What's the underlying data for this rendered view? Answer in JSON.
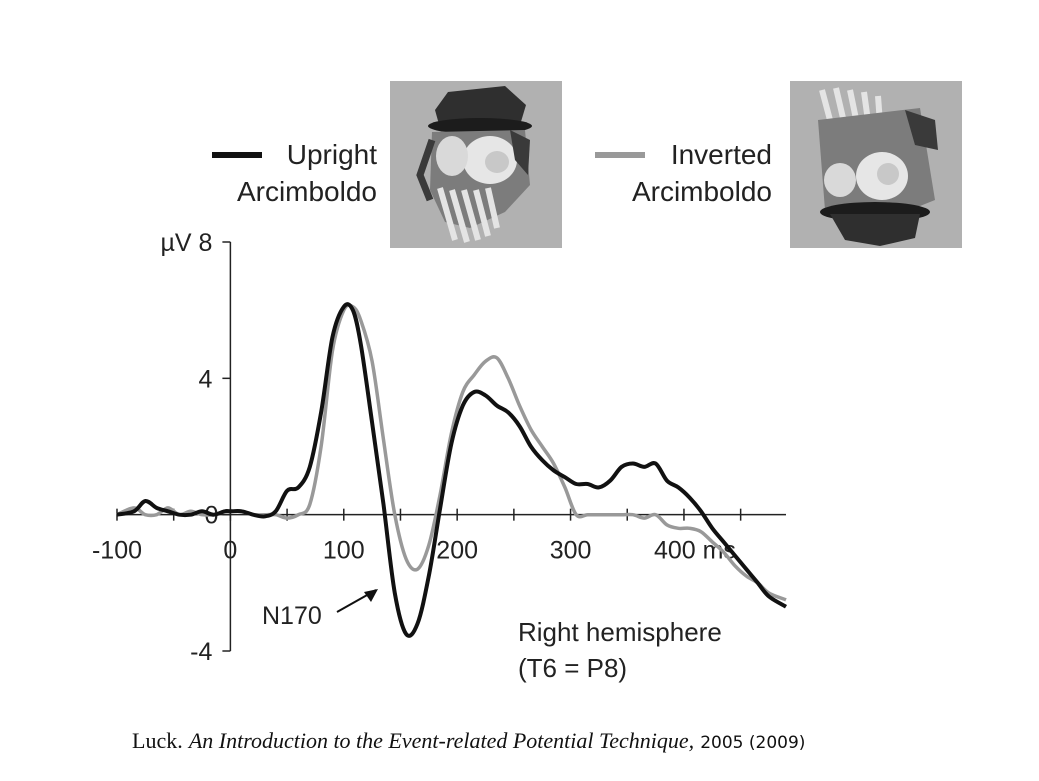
{
  "chart_data": {
    "type": "line",
    "title": "",
    "xlabel": "ms",
    "ylabel": "µV",
    "xlim": [
      -100,
      490
    ],
    "ylim": [
      -4,
      8
    ],
    "x_ticks": [
      -100,
      0,
      100,
      200,
      300,
      400
    ],
    "x_tick_labels": [
      "-100",
      "0",
      "100",
      "200",
      "300",
      "400 ms"
    ],
    "y_ticks": [
      -4,
      0,
      4,
      8
    ],
    "y_tick_labels": [
      "-4",
      "0",
      "4",
      "µV 8"
    ],
    "legend_position": "top",
    "series": [
      {
        "name": "Upright Arcimboldo",
        "color": "#111111",
        "x": [
          -100,
          -85,
          -75,
          -65,
          -55,
          -45,
          -35,
          -25,
          -15,
          -5,
          0,
          10,
          20,
          30,
          40,
          50,
          60,
          70,
          80,
          90,
          100,
          108,
          115,
          125,
          135,
          145,
          155,
          165,
          175,
          185,
          195,
          205,
          215,
          225,
          235,
          245,
          255,
          265,
          275,
          285,
          295,
          305,
          315,
          325,
          335,
          345,
          355,
          365,
          375,
          385,
          395,
          405,
          415,
          425,
          435,
          445,
          455,
          465,
          475,
          490
        ],
        "values": [
          0.0,
          0.1,
          0.4,
          0.2,
          0.1,
          0.0,
          0.0,
          0.1,
          0.0,
          0.1,
          0.1,
          0.1,
          0.0,
          -0.05,
          0.1,
          0.7,
          0.8,
          1.4,
          3.0,
          5.2,
          6.1,
          6.0,
          5.0,
          2.7,
          0.3,
          -2.3,
          -3.5,
          -3.2,
          -1.8,
          0.2,
          2.1,
          3.2,
          3.6,
          3.5,
          3.2,
          3.0,
          2.6,
          2.0,
          1.6,
          1.3,
          1.1,
          0.9,
          0.9,
          0.8,
          1.0,
          1.4,
          1.5,
          1.4,
          1.5,
          1.0,
          0.8,
          0.5,
          0.1,
          -0.4,
          -0.8,
          -1.2,
          -1.6,
          -2.0,
          -2.4,
          -2.7
        ]
      },
      {
        "name": "Inverted Arcimboldo",
        "color": "#999999",
        "x": [
          -100,
          -85,
          -75,
          -65,
          -55,
          -45,
          -35,
          -25,
          -15,
          -5,
          0,
          10,
          20,
          30,
          40,
          50,
          60,
          70,
          80,
          90,
          100,
          108,
          115,
          125,
          135,
          145,
          155,
          165,
          175,
          185,
          195,
          205,
          215,
          225,
          235,
          245,
          255,
          265,
          275,
          285,
          295,
          305,
          315,
          325,
          335,
          345,
          355,
          365,
          375,
          385,
          395,
          405,
          415,
          425,
          435,
          445,
          455,
          465,
          475,
          490
        ],
        "values": [
          0.0,
          0.2,
          0.0,
          0.0,
          0.2,
          0.0,
          0.1,
          0.0,
          0.0,
          0.1,
          0.1,
          0.1,
          0.0,
          0.0,
          0.0,
          -0.1,
          0.0,
          0.3,
          2.0,
          4.8,
          6.0,
          6.1,
          5.7,
          4.5,
          2.2,
          0.0,
          -1.3,
          -1.6,
          -0.9,
          0.6,
          2.4,
          3.6,
          4.1,
          4.5,
          4.6,
          4.0,
          3.2,
          2.5,
          2.0,
          1.5,
          0.8,
          0.0,
          0.0,
          0.0,
          0.0,
          0.0,
          0.0,
          -0.1,
          0.0,
          -0.3,
          -0.4,
          -0.4,
          -0.5,
          -0.8,
          -1.1,
          -1.5,
          -1.8,
          -2.0,
          -2.3,
          -2.5
        ]
      }
    ],
    "annotations": [
      {
        "text": "N170",
        "points_to_x": 155,
        "points_to_y": -2.2
      },
      {
        "text": "Right hemisphere"
      },
      {
        "text": "(T6 = P8)"
      }
    ]
  },
  "legend": {
    "upright_line1": "Upright",
    "upright_line2": "Arcimboldo",
    "inverted_line1": "Inverted",
    "inverted_line2": "Arcimboldo"
  },
  "citation": {
    "author": "Luck.",
    "book": "An Introduction to the Event-related Potential Technique,",
    "years": "2005 (2009)"
  }
}
